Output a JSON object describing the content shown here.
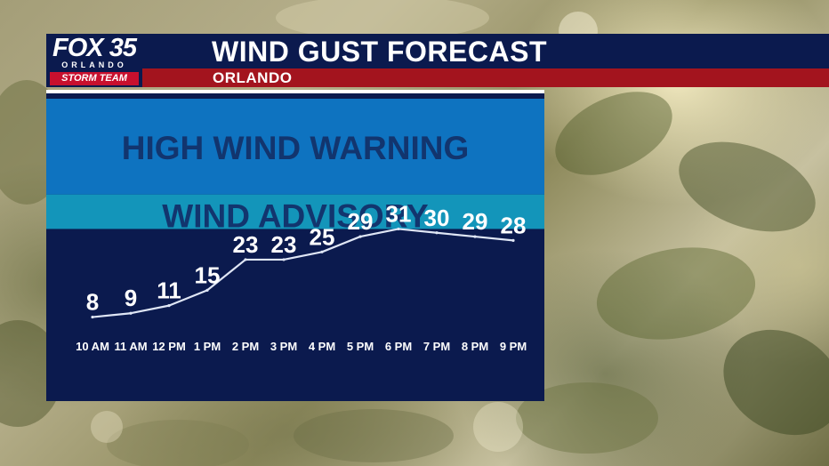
{
  "header": {
    "logo": {
      "brand": "FOX 35",
      "city": "ORLANDO",
      "team": "STORM TEAM"
    },
    "title": "WIND GUST FORECAST",
    "subtitle": "ORLANDO"
  },
  "colors": {
    "navy": "#0b1a4e",
    "red": "#a3141e",
    "warning_zone": "#0e73c0",
    "advisory_zone": "#1395ba",
    "zone_text": "#12356e",
    "line": "#dfe6f5"
  },
  "chart_data": {
    "type": "line",
    "title": "WIND GUST FORECAST",
    "subtitle": "ORLANDO",
    "categories": [
      "10 AM",
      "11 AM",
      "12 PM",
      "1 PM",
      "2 PM",
      "3 PM",
      "4 PM",
      "5 PM",
      "6 PM",
      "7 PM",
      "8 PM",
      "9 PM"
    ],
    "values": [
      8,
      9,
      11,
      15,
      23,
      23,
      25,
      29,
      31,
      30,
      29,
      28
    ],
    "ylim": [
      0,
      65
    ],
    "bands": [
      {
        "label": "HIGH WIND WARNING",
        "from": 40,
        "to": 65,
        "color": "#0e73c0"
      },
      {
        "label": "WIND ADVISORY",
        "from": 31,
        "to": 40,
        "color": "#1395ba"
      }
    ],
    "grid": false,
    "legend": "none"
  }
}
